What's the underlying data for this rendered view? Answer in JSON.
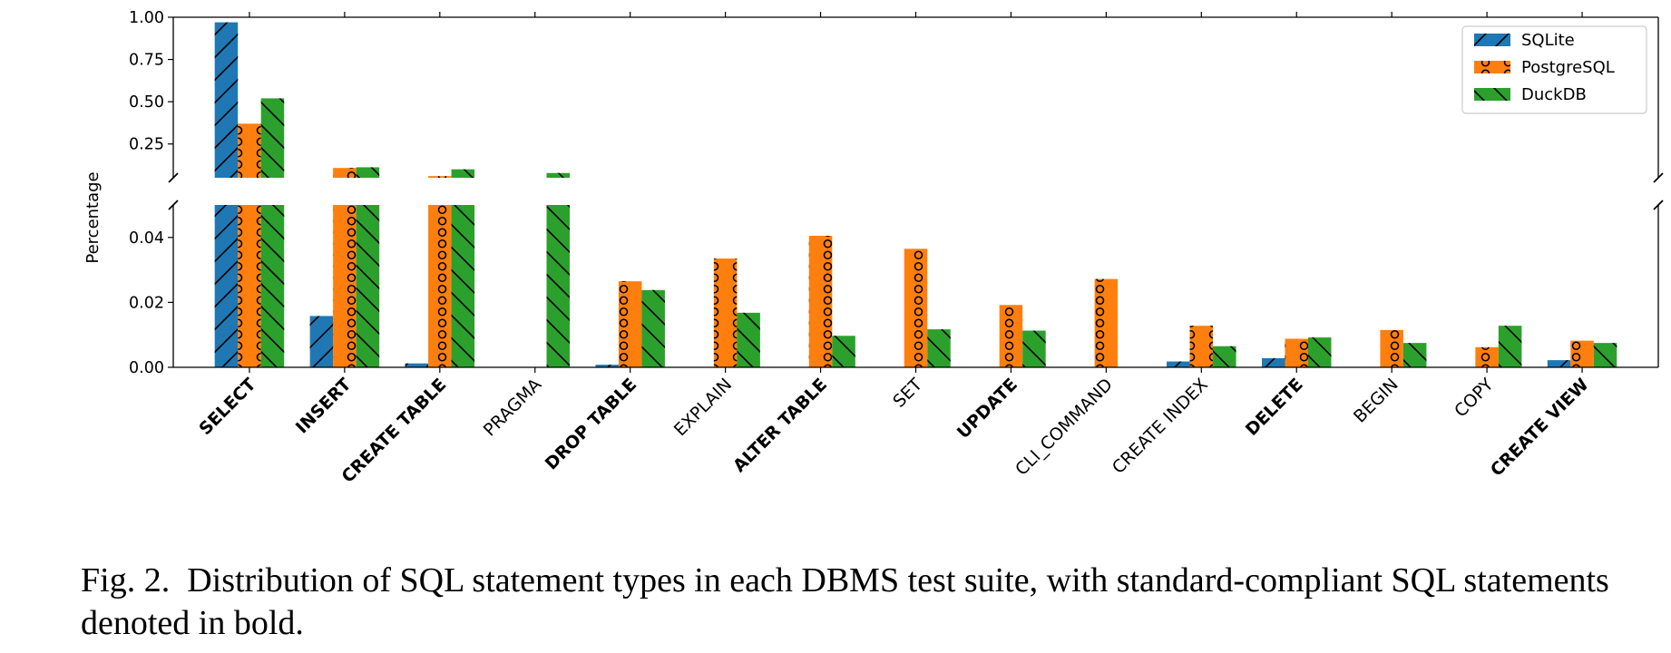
{
  "chart_data": {
    "type": "bar",
    "ylabel": "Percentage",
    "broken_axis": true,
    "upper_ylim": [
      0.05,
      1.0
    ],
    "upper_yticks": [
      "0.25",
      "0.50",
      "0.75",
      "1.00"
    ],
    "lower_ylim": [
      0.0,
      0.05
    ],
    "lower_yticks": [
      "0.00",
      "0.02",
      "0.04"
    ],
    "legend_position": "top-right",
    "grid": false,
    "categories": [
      "SELECT",
      "INSERT",
      "CREATE TABLE",
      "PRAGMA",
      "DROP TABLE",
      "EXPLAIN",
      "ALTER TABLE",
      "SET",
      "UPDATE",
      "CLI_COMMAND",
      "CREATE INDEX",
      "DELETE",
      "BEGIN",
      "COPY",
      "CREATE VIEW"
    ],
    "bold_categories": [
      "SELECT",
      "INSERT",
      "CREATE TABLE",
      "DROP TABLE",
      "ALTER TABLE",
      "UPDATE",
      "DELETE",
      "CREATE VIEW"
    ],
    "series": [
      {
        "name": "SQLite",
        "color": "#1f77b4",
        "hatch": "diagonal-slash",
        "values": [
          0.97,
          0.0158,
          0.0012,
          0.0,
          0.0008,
          0.0,
          0.0,
          0.0,
          0.0,
          0.0,
          0.0018,
          0.0028,
          0.0,
          0.0,
          0.0022
        ]
      },
      {
        "name": "PostgreSQL",
        "color": "#ff7f0e",
        "hatch": "circles",
        "values": [
          0.37,
          0.108,
          0.06,
          0.0,
          0.0265,
          0.0335,
          0.0405,
          0.0365,
          0.0192,
          0.0272,
          0.0128,
          0.0088,
          0.0115,
          0.0062,
          0.0082
        ]
      },
      {
        "name": "DuckDB",
        "color": "#2ca02c",
        "hatch": "diagonal-backslash",
        "values": [
          0.52,
          0.112,
          0.1,
          0.078,
          0.0238,
          0.0168,
          0.0097,
          0.0117,
          0.0113,
          0.0,
          0.0065,
          0.0092,
          0.0075,
          0.0128,
          0.0075
        ]
      }
    ]
  },
  "caption": {
    "label": "Fig. 2.",
    "text": "Distribution of SQL statement types in each DBMS test suite, with standard-compliant SQL statements denoted in bold."
  }
}
